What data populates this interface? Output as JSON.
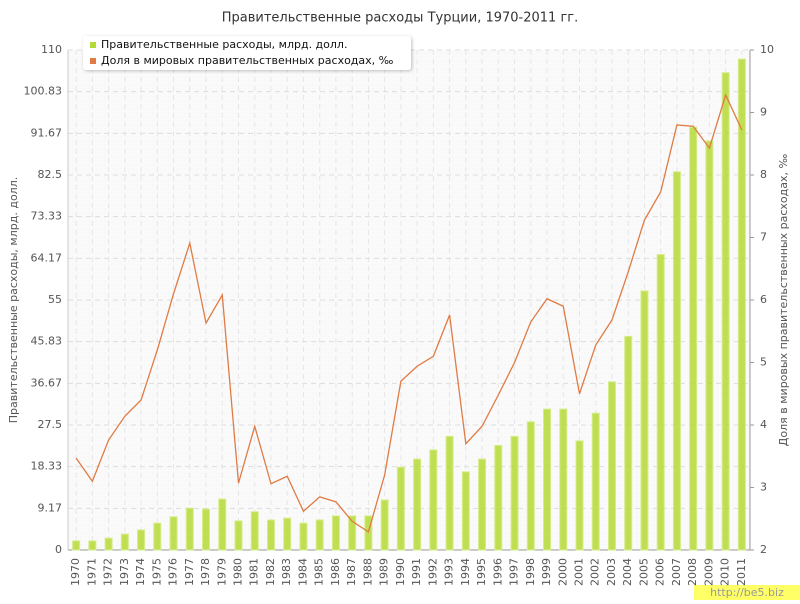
{
  "chart_data": {
    "type": "bar",
    "title": "Правительственные расходы Турции, 1970-2011 гг.",
    "y_label": "Правительственные расходы, млрд. долл.",
    "y2_label": "Доля в мировых правительственных расходах, ‰",
    "watermark": "http://be5.biz",
    "categories": [
      "1970",
      "1971",
      "1972",
      "1973",
      "1974",
      "1975",
      "1976",
      "1977",
      "1978",
      "1979",
      "1980",
      "1981",
      "1982",
      "1983",
      "1984",
      "1985",
      "1986",
      "1987",
      "1988",
      "1989",
      "1990",
      "1991",
      "1992",
      "1993",
      "1994",
      "1995",
      "1996",
      "1997",
      "1998",
      "1999",
      "2000",
      "2001",
      "2002",
      "2003",
      "2004",
      "2005",
      "2006",
      "2007",
      "2008",
      "2009",
      "2010",
      "2011"
    ],
    "series": [
      {
        "name": "Правительственные расходы, млрд. долл.",
        "type": "bar",
        "color": "#b5d935",
        "values": [
          2,
          2,
          2.6,
          3.5,
          4.4,
          5.9,
          7.3,
          9.2,
          9,
          11.2,
          6.4,
          8.4,
          6.6,
          7,
          5.9,
          6.6,
          7.5,
          7.5,
          7.5,
          11,
          18.2,
          20,
          22,
          25,
          17.2,
          20,
          23,
          25,
          28.2,
          31,
          31,
          24,
          30.1,
          37,
          47,
          57,
          65,
          83.2,
          93,
          90,
          105,
          108
        ]
      },
      {
        "name": "Доля в мировых правительственных расходах, ‰",
        "type": "line",
        "color": "#e07b45",
        "axis": "y2",
        "values": [
          3.47,
          3.1,
          3.76,
          4.14,
          4.4,
          5.2,
          6.1,
          6.91,
          5.63,
          6.08,
          3.07,
          3.98,
          3.06,
          3.18,
          2.62,
          2.85,
          2.77,
          2.46,
          2.29,
          3.2,
          4.7,
          4.94,
          5.1,
          5.76,
          3.7,
          3.98,
          4.48,
          5.0,
          5.65,
          6.02,
          5.9,
          4.5,
          5.28,
          5.68,
          6.45,
          7.28,
          7.73,
          8.8,
          8.78,
          8.43,
          9.28,
          8.72
        ]
      }
    ],
    "ylim": [
      0,
      110
    ],
    "yticks": [
      0,
      9.17,
      18.33,
      27.5,
      36.67,
      45.83,
      55,
      64.17,
      73.33,
      82.5,
      91.67,
      100.83,
      110
    ],
    "y2lim": [
      2,
      10
    ],
    "y2ticks": [
      2,
      3,
      4,
      5,
      6,
      7,
      8,
      9,
      10
    ],
    "grid": true,
    "legend": "top-left"
  }
}
